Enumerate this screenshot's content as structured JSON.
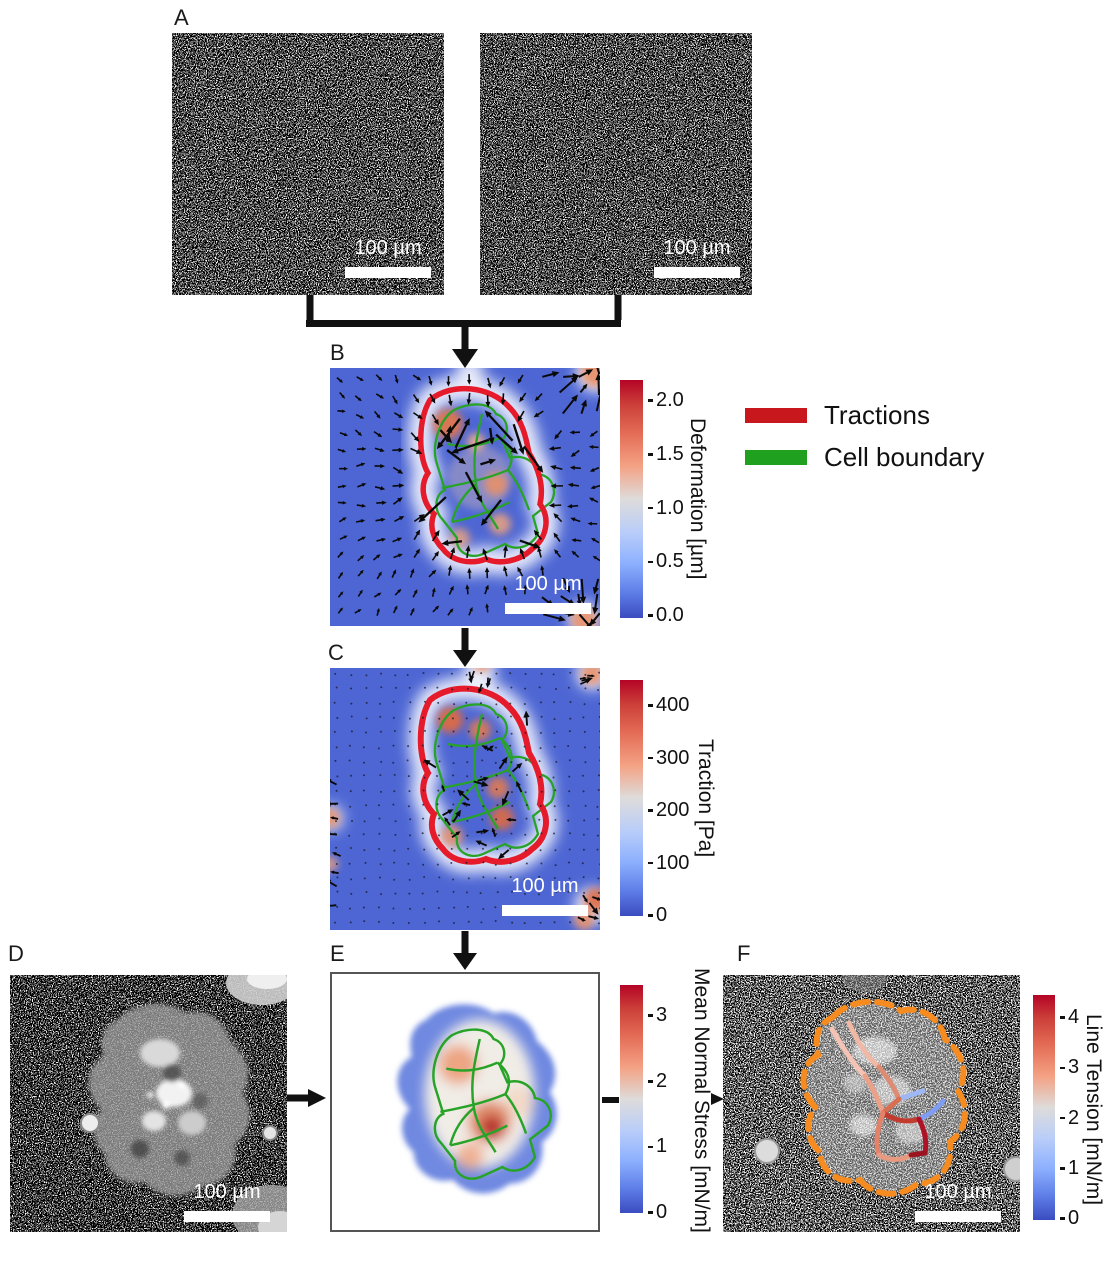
{
  "panels": {
    "a": {
      "label": "A",
      "image1": {
        "scalebar": "100 µm"
      },
      "image2": {
        "scalebar": "100 µm"
      }
    },
    "b": {
      "label": "B",
      "scalebar": "100 µm",
      "colorbar": {
        "title": "Deformation [µm]",
        "ticks": [
          "2.0",
          "1.5",
          "1.0",
          "0.5",
          "0.0"
        ]
      }
    },
    "c": {
      "label": "C",
      "scalebar": "100 µm",
      "colorbar": {
        "title": "Traction [Pa]",
        "ticks": [
          "400",
          "300",
          "200",
          "100",
          "0"
        ]
      }
    },
    "d": {
      "label": "D",
      "scalebar": "100 µm"
    },
    "e": {
      "label": "E",
      "colorbar": {
        "title": "Mean Normal Stress [mN/m]",
        "ticks": [
          "3",
          "2",
          "1",
          "0"
        ]
      }
    },
    "f": {
      "label": "F",
      "scalebar": "100 µm",
      "colorbar": {
        "title": "Line Tension [mN/m]",
        "ticks": [
          "4",
          "3",
          "2",
          "1",
          "0"
        ]
      }
    }
  },
  "legend": {
    "items": [
      {
        "label": "Tractions",
        "color": "#c9181d"
      },
      {
        "label": "Cell boundary",
        "color": "#1fa11f"
      }
    ]
  },
  "colormap": {
    "name": "coolwarm",
    "top": "#b40426",
    "mid": "#dddcdb",
    "bottom": "#3b4cc0"
  },
  "overlay_colors": {
    "traction_contour": "#e51b2b",
    "cell_boundary": "#27a327",
    "colony_outline": "#f68b1f"
  }
}
